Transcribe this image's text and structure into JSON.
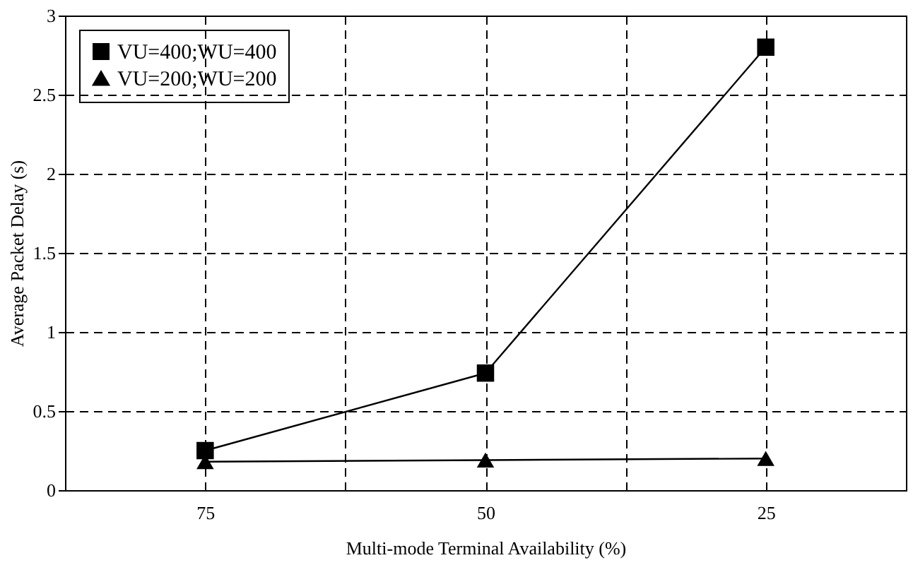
{
  "chart_data": {
    "type": "line",
    "xlabel": "Multi-mode Terminal Availability (%)",
    "ylabel": "Average Packet Delay (s)",
    "categories": [
      "75",
      "50",
      "25"
    ],
    "series": [
      {
        "name": "VU=400;WU=400",
        "color": "#000000",
        "marker": "square",
        "values": [
          0.25,
          0.74,
          2.8
        ]
      },
      {
        "name": "VU=200;WU=200",
        "color": "#000000",
        "marker": "triangle",
        "values": [
          0.18,
          0.19,
          0.2
        ]
      }
    ],
    "ylim": [
      0,
      3
    ],
    "yticks": [
      0,
      0.5,
      1,
      1.5,
      2,
      2.5,
      3
    ],
    "grid": true,
    "legend": "top left",
    "line_style": "solid"
  }
}
